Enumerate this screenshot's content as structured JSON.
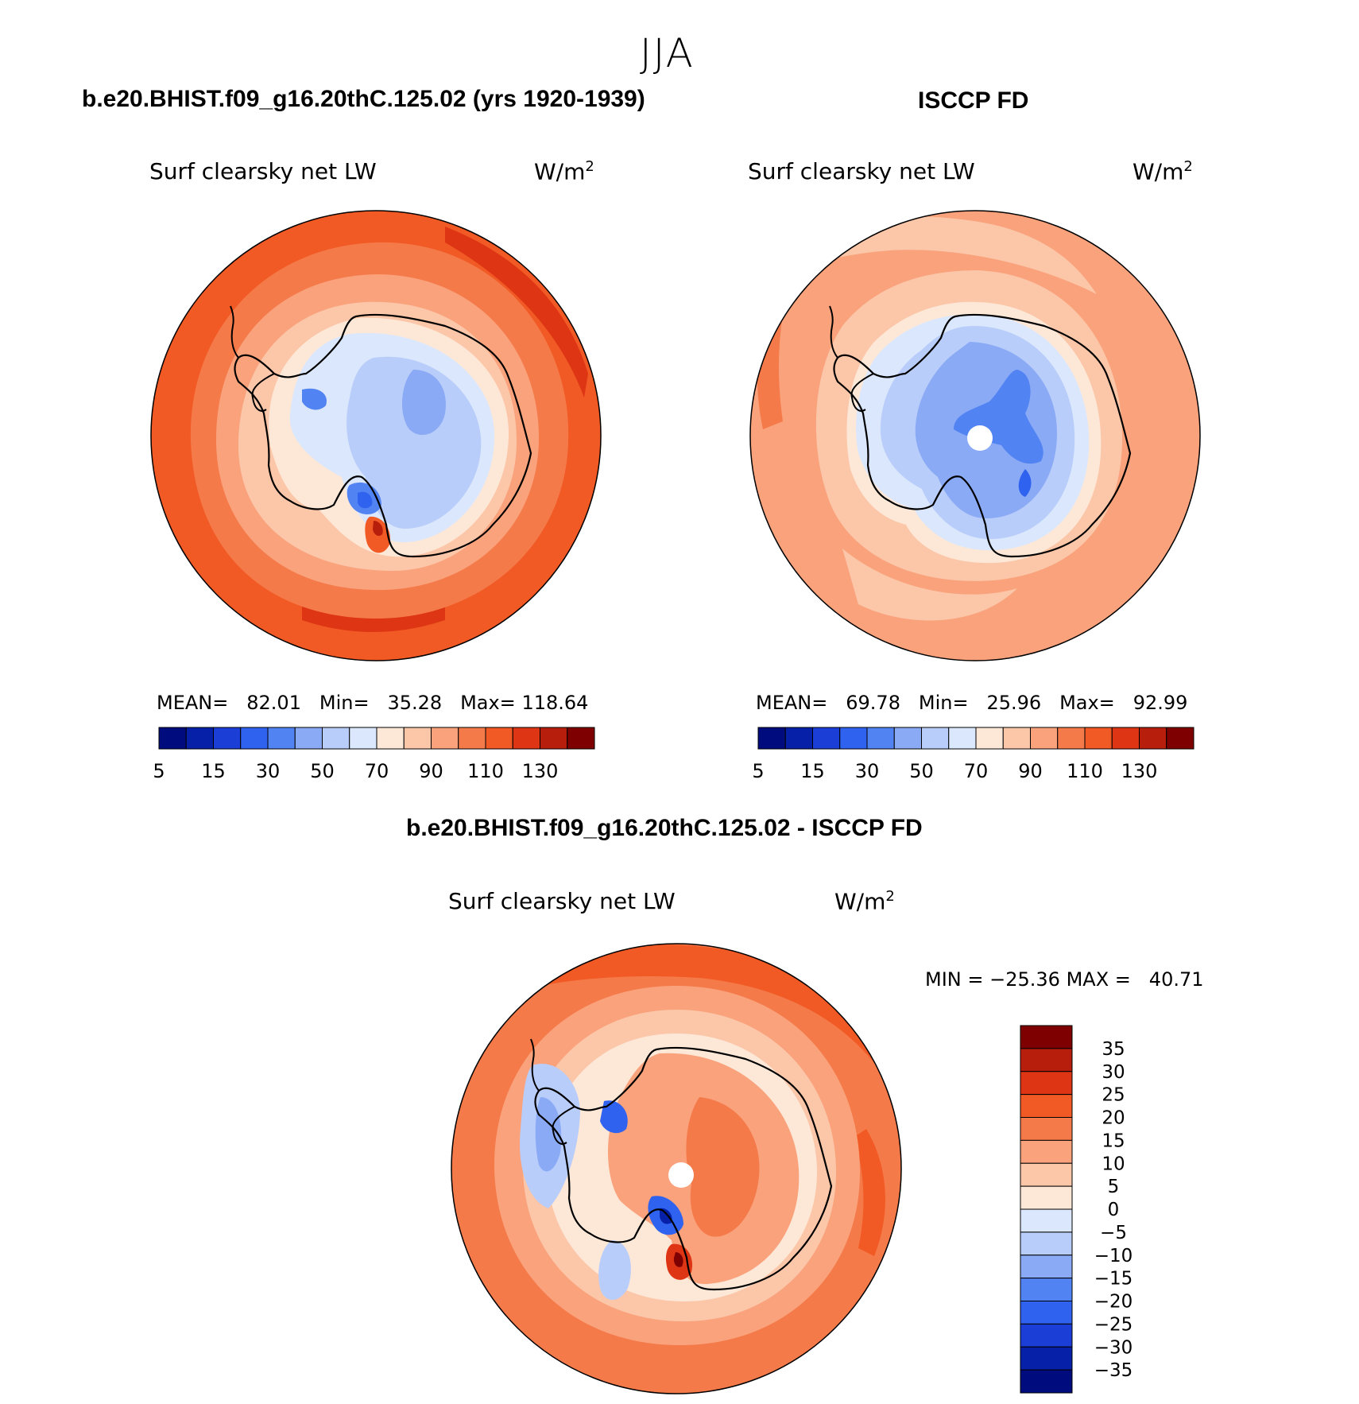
{
  "figure_title": "JJA",
  "chart_data": [
    {
      "type": "heatmap",
      "projection": "south-polar-stereographic",
      "case_title": "b.e20.BHIST.f09_g16.20thC.125.02 (yrs 1920-1939)",
      "variable": "Surf clearsky net LW",
      "units_base": "W/m",
      "units_exp": "2",
      "stats": {
        "mean_label": "MEAN=",
        "mean": "82.01",
        "min_label": "Min=",
        "min": "35.28",
        "max_label": "Max=",
        "max": "118.64"
      },
      "colorbar_levels": [
        5,
        10,
        15,
        20,
        30,
        40,
        50,
        60,
        70,
        80,
        90,
        100,
        110,
        120,
        130
      ],
      "colorbar_tick_labels": [
        "5",
        "15",
        "30",
        "50",
        "70",
        "90",
        "110",
        "130"
      ],
      "field_description": "ocean 90-118, sea-ice zone 70-90, East Antarctic plateau 40-60, West Antarctica 60-70"
    },
    {
      "type": "heatmap",
      "projection": "south-polar-stereographic",
      "case_title": "ISCCP FD",
      "variable": "Surf clearsky net LW",
      "units_base": "W/m",
      "units_exp": "2",
      "stats": {
        "mean_label": "MEAN=",
        "mean": "69.78",
        "min_label": "Min=",
        "min": "25.96",
        "max_label": "Max=",
        "max": "92.99"
      },
      "colorbar_levels": [
        5,
        10,
        15,
        20,
        30,
        40,
        50,
        60,
        70,
        80,
        90,
        100,
        110,
        120,
        130
      ],
      "colorbar_tick_labels": [
        "5",
        "15",
        "30",
        "50",
        "70",
        "90",
        "110",
        "130"
      ],
      "field_description": "ocean 70-92, interior 26-50 with missing value at pole"
    },
    {
      "type": "heatmap",
      "projection": "south-polar-stereographic",
      "case_title": "b.e20.BHIST.f09_g16.20thC.125.02 - ISCCP FD",
      "variable": "Surf clearsky net LW",
      "units_base": "W/m",
      "units_exp": "2",
      "stats": {
        "min_label": "MIN =",
        "min": "−25.36",
        "max_label": "MAX =",
        "max": "40.71"
      },
      "colorbar_levels": [
        -35,
        -30,
        -25,
        -20,
        -15,
        -10,
        -5,
        0,
        5,
        10,
        15,
        20,
        25,
        30,
        35
      ],
      "colorbar_tick_labels": [
        "35",
        "30",
        "25",
        "20",
        "15",
        "10",
        "5",
        "0",
        "−5",
        "−10",
        "−15",
        "−20",
        "−25",
        "−30",
        "−35"
      ],
      "field_description": "difference: ocean +10 to +25, plateau +10 to +20, Ross/Weddell ice -5 to -25"
    }
  ],
  "colors": {
    "abs_palette": [
      "#000c7d",
      "#0620a8",
      "#1b3fd6",
      "#2f62ef",
      "#5283f2",
      "#8aaaf5",
      "#b9cdfa",
      "#dbe7fc",
      "#fde8d8",
      "#fcc6a8",
      "#f9a27c",
      "#f57a4a",
      "#f15a24",
      "#de3515",
      "#b81e0c",
      "#7f0000"
    ],
    "diff_palette": [
      "#000c7d",
      "#0620a8",
      "#1b3fd6",
      "#2f62ef",
      "#5283f2",
      "#8aaaf5",
      "#b9cdfa",
      "#dbe7fc",
      "#fde8d8",
      "#fcc6a8",
      "#f9a27c",
      "#f57a4a",
      "#f15a24",
      "#de3515",
      "#b81e0c",
      "#7f0000"
    ]
  }
}
